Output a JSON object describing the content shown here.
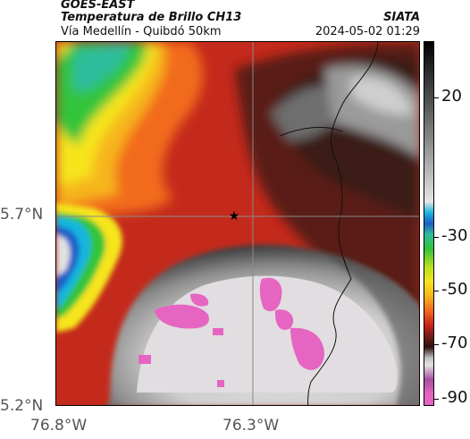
{
  "header": {
    "satellite": "GOES-EAST",
    "product": "Temperatura de Brillo CH13",
    "route": "Vía Medellín - Quibdó 50km",
    "agency": "SIATA",
    "timestamp": "2024-05-02 01:29"
  },
  "axes": {
    "y_ticks": [
      "5.7°N",
      "5.2°N"
    ],
    "x_ticks": [
      "76.8°W",
      "76.3°W"
    ]
  },
  "colorbar": {
    "labels": [
      "20",
      "-30",
      "-50",
      "-70",
      "-90"
    ]
  },
  "colors": {
    "red": "#c8221c",
    "dark_red": "#5a1b15",
    "orange": "#f26a1e",
    "yellow": "#f6e41d",
    "green": "#32c43a",
    "cyan": "#19b6e0",
    "blue": "#1b5fc8",
    "light_gray": "#dcdcdc",
    "magenta": "#e665c2"
  }
}
